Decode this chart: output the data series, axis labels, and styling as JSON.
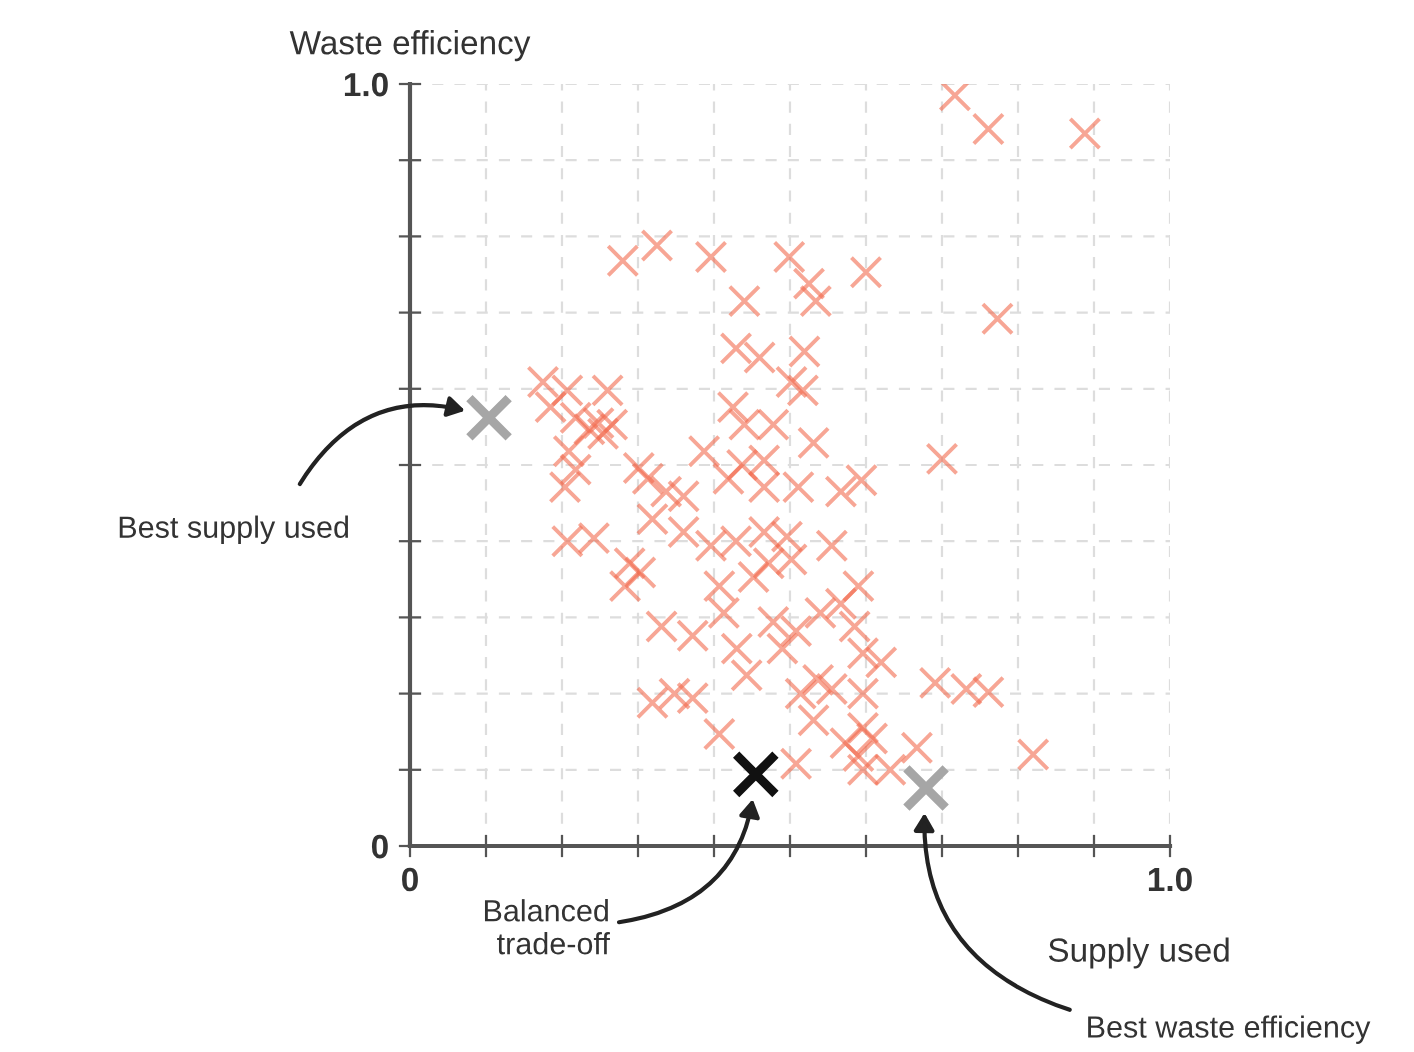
{
  "chart_data": {
    "type": "scatter",
    "xlabel": "Supply used",
    "ylabel": "Waste efficiency",
    "xlim": [
      0,
      1.0
    ],
    "ylim": [
      0,
      1.0
    ],
    "xticks": [
      0,
      {
        "value": 0.1,
        "label": null
      },
      {
        "value": 0.2,
        "label": null
      },
      {
        "value": 0.3,
        "label": null
      },
      {
        "value": 0.4,
        "label": null
      },
      {
        "value": 0.5,
        "label": null
      },
      {
        "value": 0.6,
        "label": null
      },
      {
        "value": 0.7,
        "label": null
      },
      {
        "value": 0.8,
        "label": null
      },
      {
        "value": 0.9,
        "label": null
      },
      {
        "value": 1.0,
        "label": "1.0"
      }
    ],
    "yticks": [
      0,
      {
        "value": 0.1,
        "label": null
      },
      {
        "value": 0.2,
        "label": null
      },
      {
        "value": 0.3,
        "label": null
      },
      {
        "value": 0.4,
        "label": null
      },
      {
        "value": 0.5,
        "label": null
      },
      {
        "value": 0.6,
        "label": null
      },
      {
        "value": 0.7,
        "label": null
      },
      {
        "value": 0.8,
        "label": null
      },
      {
        "value": 0.9,
        "label": null
      },
      {
        "value": 1.0,
        "label": "1.0"
      }
    ],
    "grid": true,
    "marker": "cross",
    "series": [
      {
        "color": "#f26b4f",
        "x": [
          0.717,
          0.761,
          0.888,
          0.28,
          0.325,
          0.396,
          0.499,
          0.6,
          0.525,
          0.534,
          0.44,
          0.773,
          0.429,
          0.46,
          0.519,
          0.502,
          0.517,
          0.175,
          0.207,
          0.26,
          0.185,
          0.218,
          0.236,
          0.248,
          0.266,
          0.254,
          0.209,
          0.218,
          0.204,
          0.207,
          0.242,
          0.425,
          0.44,
          0.478,
          0.531,
          0.7,
          0.387,
          0.437,
          0.466,
          0.419,
          0.301,
          0.313,
          0.337,
          0.36,
          0.466,
          0.511,
          0.567,
          0.594,
          0.319,
          0.36,
          0.396,
          0.429,
          0.466,
          0.496,
          0.555,
          0.289,
          0.303,
          0.283,
          0.472,
          0.502,
          0.452,
          0.407,
          0.59,
          0.567,
          0.54,
          0.413,
          0.478,
          0.508,
          0.331,
          0.372,
          0.585,
          0.43,
          0.49,
          0.596,
          0.62,
          0.443,
          0.537,
          0.555,
          0.596,
          0.514,
          0.319,
          0.348,
          0.372,
          0.691,
          0.732,
          0.761,
          0.531,
          0.407,
          0.596,
          0.608,
          0.573,
          0.59,
          0.632,
          0.508,
          0.667,
          0.82,
          0.596
        ],
        "values": [
          0.985,
          0.941,
          0.935,
          0.768,
          0.788,
          0.773,
          0.773,
          0.753,
          0.738,
          0.715,
          0.715,
          0.692,
          0.653,
          0.641,
          0.649,
          0.609,
          0.598,
          0.609,
          0.598,
          0.598,
          0.576,
          0.562,
          0.547,
          0.555,
          0.553,
          0.541,
          0.518,
          0.494,
          0.471,
          0.4,
          0.404,
          0.576,
          0.553,
          0.553,
          0.529,
          0.508,
          0.518,
          0.5,
          0.506,
          0.482,
          0.496,
          0.482,
          0.465,
          0.459,
          0.471,
          0.471,
          0.465,
          0.48,
          0.429,
          0.412,
          0.394,
          0.4,
          0.412,
          0.406,
          0.394,
          0.371,
          0.359,
          0.341,
          0.371,
          0.376,
          0.353,
          0.341,
          0.341,
          0.318,
          0.306,
          0.306,
          0.294,
          0.282,
          0.288,
          0.276,
          0.288,
          0.259,
          0.259,
          0.253,
          0.241,
          0.224,
          0.218,
          0.206,
          0.2,
          0.2,
          0.188,
          0.2,
          0.194,
          0.214,
          0.206,
          0.202,
          0.165,
          0.147,
          0.155,
          0.141,
          0.135,
          0.118,
          0.1,
          0.108,
          0.129,
          0.12,
          0.1
        ]
      },
      {
        "color": "#a6a6a6",
        "x": [
          0.104
        ],
        "values": [
          0.562
        ]
      },
      {
        "color": "#111111",
        "x": [
          0.455
        ],
        "values": [
          0.094
        ]
      },
      {
        "color": "#a6a6a6",
        "x": [
          0.679
        ],
        "values": [
          0.076
        ]
      }
    ],
    "annotations": [
      "Best supply used",
      "Balanced\ntrade-off",
      "Best waste efficiency"
    ]
  }
}
